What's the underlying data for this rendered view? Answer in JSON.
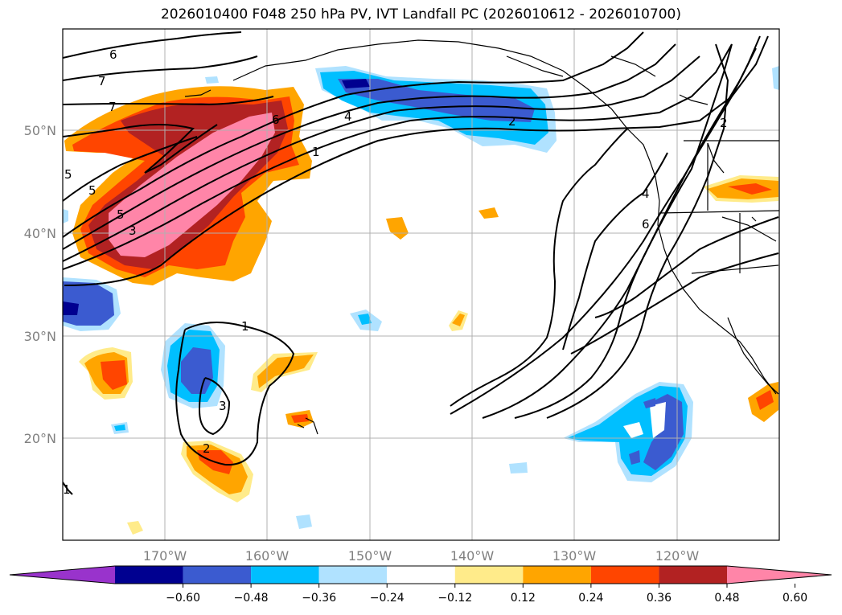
{
  "title": "2026010400 F048 250 hPa PV, IVT Landfall PC (2026010612 - 2026010700)",
  "lat_labels": [
    "50°N",
    "40°N",
    "30°N",
    "20°N"
  ],
  "lon_labels": [
    "170°W",
    "160°W",
    "150°W",
    "140°W",
    "130°W",
    "120°W"
  ],
  "colorbar": {
    "ticks": [
      "−0.60",
      "−0.48",
      "−0.36",
      "−0.24",
      "−0.12",
      "0.12",
      "0.24",
      "0.36",
      "0.48",
      "0.60"
    ],
    "colors": [
      "#9933cc",
      "#000090",
      "#3b5bd0",
      "#00bfff",
      "#b0e2ff",
      "#ffffff",
      "#ffeb8a",
      "#ffa500",
      "#ff4500",
      "#b22222",
      "#ff85a8"
    ]
  },
  "contour_labels": [
    "6",
    "7",
    "7",
    "5",
    "5",
    "3",
    "6",
    "4",
    "2",
    "1",
    "1",
    "3",
    "2",
    "4",
    "6",
    "2",
    "5",
    "1"
  ]
}
